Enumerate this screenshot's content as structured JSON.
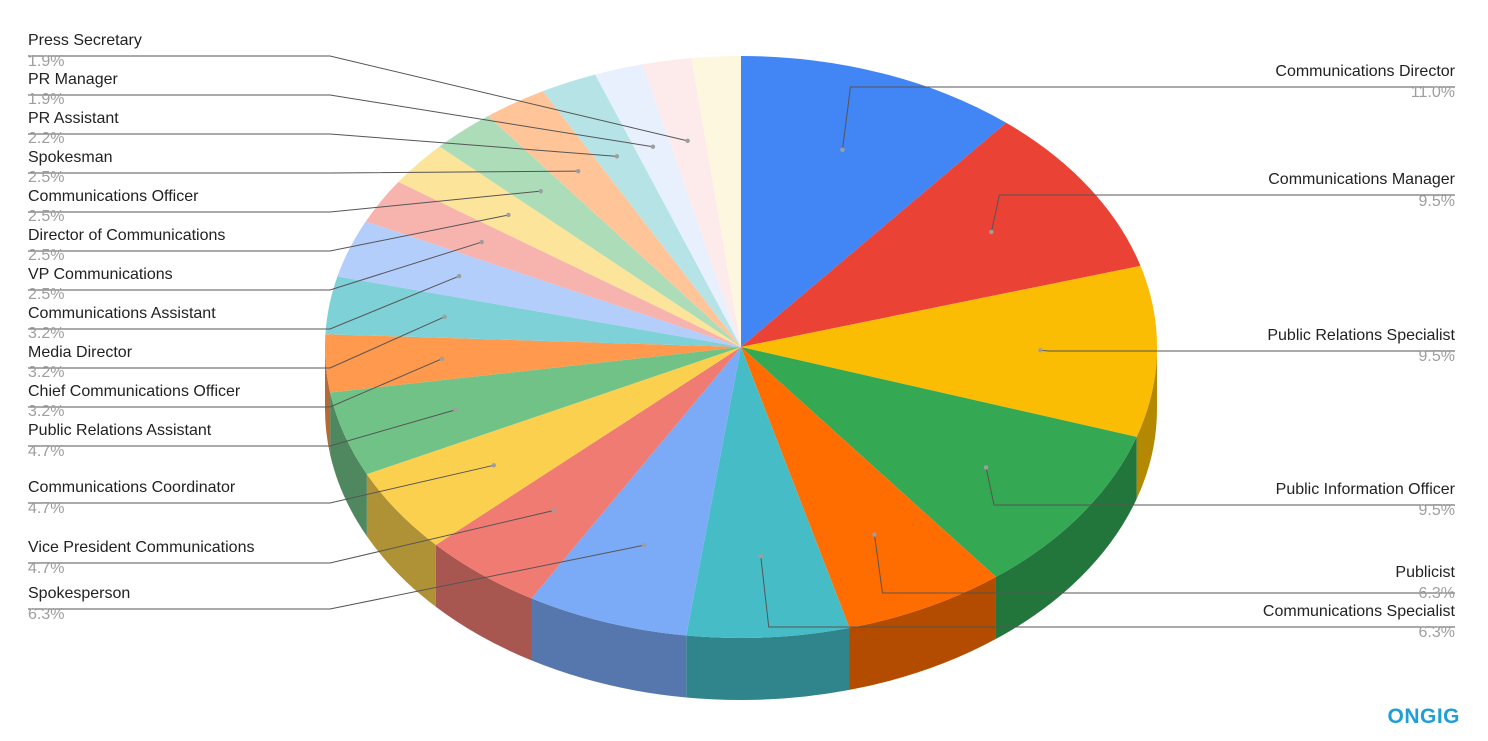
{
  "brand": {
    "logo_text": "ONGIG"
  },
  "chart_data": {
    "type": "pie",
    "style": "3d",
    "start_angle": "12 o'clock, clockwise",
    "legend": "none (leader-line labels)",
    "slices": [
      {
        "label": "Communications Director",
        "value": 11.0,
        "pct_text": "11.0%",
        "color": "#4285f4",
        "side_color": "#2e5db0"
      },
      {
        "label": "Communications Manager",
        "value": 9.5,
        "pct_text": "9.5%",
        "color": "#ea4335",
        "side_color": "#a52e25"
      },
      {
        "label": "Public Relations Specialist",
        "value": 9.5,
        "pct_text": "9.5%",
        "color": "#fbbc04",
        "side_color": "#b58802"
      },
      {
        "label": "Public Information Officer",
        "value": 9.5,
        "pct_text": "9.5%",
        "color": "#34a853",
        "side_color": "#23763b"
      },
      {
        "label": "Publicist",
        "value": 6.3,
        "pct_text": "6.3%",
        "color": "#ff6d01",
        "side_color": "#b44c00"
      },
      {
        "label": "Communications Specialist",
        "value": 6.3,
        "pct_text": "6.3%",
        "color": "#46bdc6",
        "side_color": "#30848b"
      },
      {
        "label": "Spokesperson",
        "value": 6.3,
        "pct_text": "6.3%",
        "color": "#7baaf7",
        "side_color": "#5677ae"
      },
      {
        "label": "Vice President Communications",
        "value": 4.7,
        "pct_text": "4.7%",
        "color": "#f07b72",
        "side_color": "#a85650"
      },
      {
        "label": "Communications Coordinator",
        "value": 4.7,
        "pct_text": "4.7%",
        "color": "#fcd04f",
        "side_color": "#b09236"
      },
      {
        "label": "Public Relations Assistant",
        "value": 4.7,
        "pct_text": "4.7%",
        "color": "#71c287",
        "side_color": "#4f885e"
      },
      {
        "label": "Chief Communications Officer",
        "value": 3.2,
        "pct_text": "3.2%",
        "color": "#ff994d",
        "side_color": "#b26b36"
      },
      {
        "label": "Media Director",
        "value": 3.2,
        "pct_text": "3.2%",
        "color": "#7ed1d7",
        "side_color": "#589296"
      },
      {
        "label": "Communications Assistant",
        "value": 3.2,
        "pct_text": "3.2%",
        "color": "#b3cefb",
        "side_color": "#7d90b0"
      },
      {
        "label": "VP Communications",
        "value": 2.5,
        "pct_text": "2.5%",
        "color": "#f7b4ae",
        "side_color": "#ad7e7a"
      },
      {
        "label": "Director of Communications",
        "value": 2.5,
        "pct_text": "2.5%",
        "color": "#fde49b",
        "side_color": "#b1a06c"
      },
      {
        "label": "Communications Officer",
        "value": 2.5,
        "pct_text": "2.5%",
        "color": "#addcb9",
        "side_color": "#799a82"
      },
      {
        "label": "Spokesman",
        "value": 2.5,
        "pct_text": "2.5%",
        "color": "#ffc599",
        "side_color": "#b38a6b"
      },
      {
        "label": "PR Assistant",
        "value": 2.2,
        "pct_text": "2.2%",
        "color": "#b6e3e6",
        "side_color": "#7f9fa1"
      },
      {
        "label": "PR Manager",
        "value": 1.9,
        "pct_text": "1.9%",
        "color": "#e8f0fe",
        "side_color": "#a2a8b2"
      },
      {
        "label": "Press Secretary",
        "value": 1.9,
        "pct_text": "1.9%",
        "color": "#fdeaea",
        "side_color": "#b1a4a4"
      },
      {
        "label": "",
        "value": 1.9,
        "pct_text": "",
        "color": "#fef7e0",
        "side_color": "#b2ad9d"
      }
    ]
  }
}
